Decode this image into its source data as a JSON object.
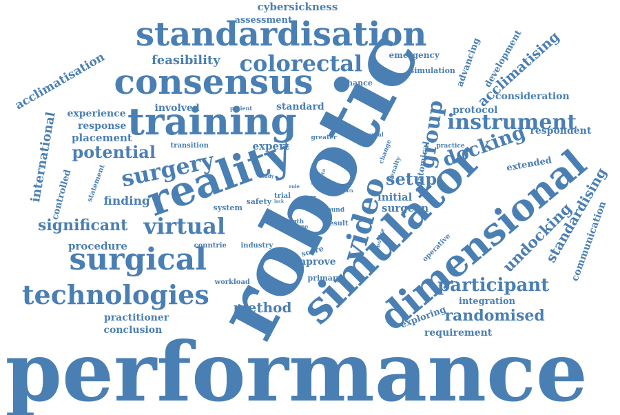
{
  "color": "#4a7fb4",
  "words": [
    {
      "name": "performance",
      "text": "performance"
    },
    {
      "name": "robotic",
      "text": "robotic"
    },
    {
      "name": "simulator",
      "text": "simulator"
    },
    {
      "name": "dimensional",
      "text": "dimensional"
    },
    {
      "name": "reality",
      "text": "reality"
    },
    {
      "name": "training",
      "text": "training"
    },
    {
      "name": "consensus",
      "text": "consensus"
    },
    {
      "name": "standardisation",
      "text": "standardisation"
    },
    {
      "name": "surgical",
      "text": "surgical"
    },
    {
      "name": "technologies",
      "text": "technologies"
    },
    {
      "name": "video",
      "text": "video"
    },
    {
      "name": "colorectal",
      "text": "colorectal"
    },
    {
      "name": "virtual",
      "text": "virtual"
    },
    {
      "name": "surgery",
      "text": "surgery"
    },
    {
      "name": "instrument",
      "text": "instrument"
    },
    {
      "name": "group",
      "text": "group"
    },
    {
      "name": "docking",
      "text": "docking"
    },
    {
      "name": "participant",
      "text": "participant"
    },
    {
      "name": "undocking",
      "text": "undocking"
    },
    {
      "name": "standardising",
      "text": "standardising"
    },
    {
      "name": "acclimatising",
      "text": "acclimatising"
    },
    {
      "name": "setup",
      "text": "setup"
    },
    {
      "name": "potential",
      "text": "potential"
    },
    {
      "name": "significant",
      "text": "significant"
    },
    {
      "name": "randomised",
      "text": "randomised"
    },
    {
      "name": "international",
      "text": "international"
    },
    {
      "name": "feasibility",
      "text": "feasibility"
    },
    {
      "name": "method",
      "text": "method"
    },
    {
      "name": "acclimatisation",
      "text": "acclimatisation"
    },
    {
      "name": "finding",
      "text": "finding"
    },
    {
      "name": "procedure",
      "text": "procedure"
    },
    {
      "name": "placement",
      "text": "placement"
    },
    {
      "name": "response",
      "text": "response"
    },
    {
      "name": "experience",
      "text": "experience"
    },
    {
      "name": "involved",
      "text": "involved"
    },
    {
      "name": "standard",
      "text": "standard"
    },
    {
      "name": "expert",
      "text": "expert"
    },
    {
      "name": "initial",
      "text": "initial"
    },
    {
      "name": "surgeon",
      "text": "surgeon"
    },
    {
      "name": "improve",
      "text": "improve"
    },
    {
      "name": "exploring",
      "text": "exploring"
    },
    {
      "name": "requirement",
      "text": "requirement"
    },
    {
      "name": "practitioner",
      "text": "practitioner"
    },
    {
      "name": "conclusion",
      "text": "conclusion"
    },
    {
      "name": "integration",
      "text": "integration"
    },
    {
      "name": "extended",
      "text": "extended"
    },
    {
      "name": "consideration",
      "text": "consideration"
    },
    {
      "name": "respondent",
      "text": "respondent"
    },
    {
      "name": "protocol",
      "text": "protocol"
    },
    {
      "name": "communication",
      "text": "communication"
    },
    {
      "name": "development",
      "text": "development"
    },
    {
      "name": "advancing",
      "text": "advancing"
    },
    {
      "name": "emergency",
      "text": "emergency"
    },
    {
      "name": "simulation",
      "text": "simulation"
    },
    {
      "name": "enhance",
      "text": "enhance"
    },
    {
      "name": "cybersickness",
      "text": "cybersickness"
    },
    {
      "name": "assessment",
      "text": "assessment"
    },
    {
      "name": "controlled",
      "text": "controlled"
    },
    {
      "name": "statement",
      "text": "statement"
    },
    {
      "name": "transition",
      "text": "transition"
    },
    {
      "name": "system",
      "text": "system"
    },
    {
      "name": "safety",
      "text": "safety"
    },
    {
      "name": "workload",
      "text": "workload"
    },
    {
      "name": "countrie",
      "text": "countrie"
    },
    {
      "name": "industry",
      "text": "industry"
    },
    {
      "name": "primary",
      "text": "primary"
    },
    {
      "name": "score",
      "text": "score"
    },
    {
      "name": "result",
      "text": "result"
    },
    {
      "name": "round",
      "text": "round"
    },
    {
      "name": "trial",
      "text": "trial"
    },
    {
      "name": "length",
      "text": "length"
    },
    {
      "name": "image",
      "text": "image"
    },
    {
      "name": "patient",
      "text": "patient"
    },
    {
      "name": "mental",
      "text": "mental"
    },
    {
      "name": "greater",
      "text": "greater"
    },
    {
      "name": "anatomical",
      "text": "anatomical"
    },
    {
      "name": "change",
      "text": "change"
    },
    {
      "name": "penalty",
      "text": "penalty"
    },
    {
      "name": "practice",
      "text": "practice"
    },
    {
      "name": "operative",
      "text": "operative"
    },
    {
      "name": "novice",
      "text": "novice"
    },
    {
      "name": "study",
      "text": "study"
    },
    {
      "name": "role",
      "text": "role"
    },
    {
      "name": "care",
      "text": "care"
    },
    {
      "name": "meta",
      "text": "meta"
    },
    {
      "name": "port",
      "text": "port"
    },
    {
      "name": "level",
      "text": "level"
    },
    {
      "name": "path",
      "text": "path"
    },
    {
      "name": "lack",
      "text": "lack"
    }
  ]
}
